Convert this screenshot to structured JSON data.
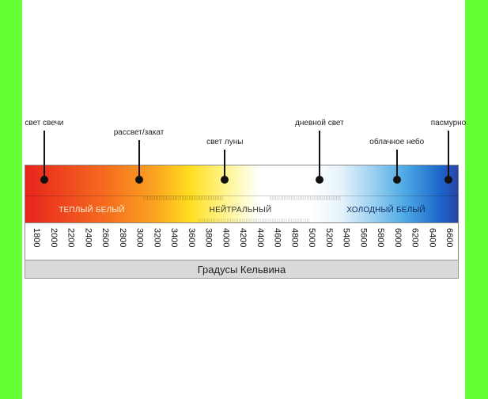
{
  "annotations": [
    {
      "text": "свет свечи",
      "kelvin": 1900
    },
    {
      "text": "рассвет/закат",
      "kelvin": 3000
    },
    {
      "text": "свет луны",
      "kelvin": 4000
    },
    {
      "text": "дневной свет",
      "kelvin": 5100
    },
    {
      "text": "облачное небо",
      "kelvin": 6000
    },
    {
      "text": "пасмурно",
      "kelvin": 6600
    }
  ],
  "zones": {
    "warm": "ТЕПЛЫЙ БЕЛЫЙ",
    "neutral": "НЕЙТРАЛЬНЫЙ",
    "cool": "ХОЛОДНЫЙ БЕЛЫЙ"
  },
  "scale": {
    "min": 1800,
    "max": 6600,
    "ticks": [
      "1800",
      "2000",
      "2200",
      "2400",
      "2600",
      "2800",
      "3000",
      "3200",
      "3400",
      "3600",
      "3800",
      "4000",
      "4200",
      "4400",
      "4600",
      "4800",
      "5000",
      "5200",
      "5400",
      "5600",
      "5800",
      "6000",
      "6200",
      "6400",
      "6600"
    ]
  },
  "footer": "Градусы Кельвина",
  "colors": {
    "warm": "#e8241d",
    "cool": "#2744a8",
    "background": "#66ff33"
  }
}
